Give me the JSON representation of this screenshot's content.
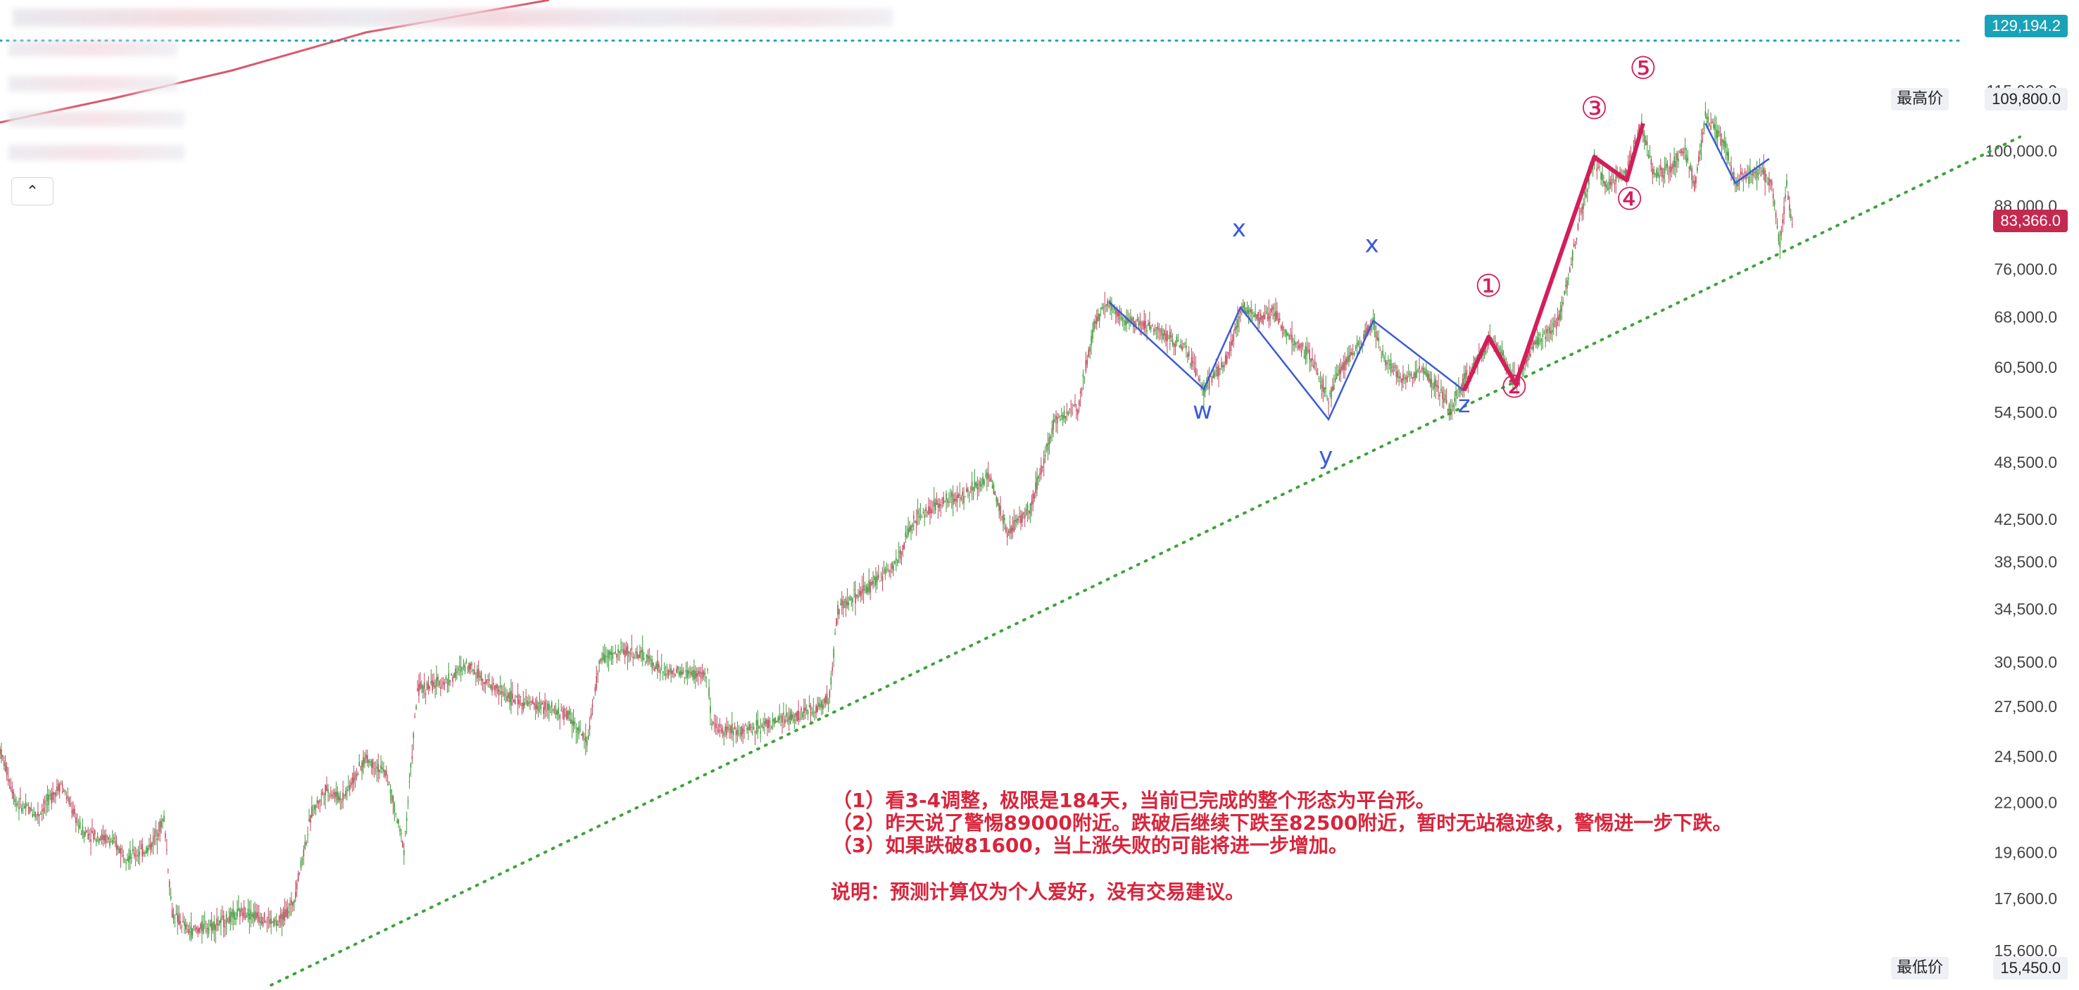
{
  "header": {
    "toggle_icon": "chevron-up-icon"
  },
  "price_tags": {
    "top_level": "129,194.2",
    "high_label": "最高价",
    "high_value": "109,800.0",
    "current": "83,366.0",
    "low_label": "最低价",
    "low_value": "15,450.0"
  },
  "notes": {
    "line1": "（1）看3-4调整，极限是184天，当前已完成的整个形态为平台形。",
    "line2": "（2）昨天说了警惕89000附近。跌破后继续下跌至82500附近，暂时无站稳迹象，警惕进一步下跌。",
    "line3": "（3）如果跌破81600，当上涨失败的可能将进一步增加。",
    "disclaimer": "说明：预测计算仅为个人爱好，没有交易建议。"
  },
  "colors": {
    "up": "#3f9a3a",
    "down": "#c2475e",
    "wave_blue": "#3b5bd6",
    "wave_red": "#d21f5a",
    "trend_green": "#3da33a",
    "top_line": "#1aa3b8",
    "note_red": "#d8253c"
  },
  "chart_data": {
    "type": "candlestick",
    "y_scale": "log",
    "y_ticks": [
      "115,000.0",
      "100,000.0",
      "88,000.0",
      "76,000.0",
      "68,000.0",
      "60,500.0",
      "54,500.0",
      "48,500.0",
      "42,500.0",
      "38,500.0",
      "34,500.0",
      "30,500.0",
      "27,500.0",
      "24,500.0",
      "22,000.0",
      "19,600.0",
      "17,600.0",
      "15,600.0"
    ],
    "y_tick_values": [
      115000,
      100000,
      88000,
      76000,
      68000,
      60500,
      54500,
      48500,
      42500,
      38500,
      34500,
      30500,
      27500,
      24500,
      22000,
      19600,
      17600,
      15600
    ],
    "ylim": [
      14400,
      133000
    ],
    "x_index_range": [
      0,
      1300
    ],
    "price_path": [
      [
        0,
        24900
      ],
      [
        12,
        22000
      ],
      [
        28,
        21400
      ],
      [
        45,
        23000
      ],
      [
        60,
        20600
      ],
      [
        80,
        20200
      ],
      [
        95,
        19400
      ],
      [
        110,
        19800
      ],
      [
        121,
        21200
      ],
      [
        127,
        17000
      ],
      [
        140,
        16300
      ],
      [
        165,
        16700
      ],
      [
        180,
        17100
      ],
      [
        205,
        16600
      ],
      [
        216,
        17400
      ],
      [
        230,
        21500
      ],
      [
        240,
        22700
      ],
      [
        252,
        22200
      ],
      [
        270,
        24400
      ],
      [
        285,
        23500
      ],
      [
        298,
        19800
      ],
      [
        308,
        28600
      ],
      [
        330,
        29200
      ],
      [
        345,
        30400
      ],
      [
        362,
        28900
      ],
      [
        380,
        27900
      ],
      [
        400,
        27500
      ],
      [
        420,
        26900
      ],
      [
        433,
        25300
      ],
      [
        443,
        30800
      ],
      [
        462,
        31300
      ],
      [
        475,
        30900
      ],
      [
        490,
        29800
      ],
      [
        522,
        29600
      ],
      [
        525,
        26200
      ],
      [
        545,
        26000
      ],
      [
        575,
        26600
      ],
      [
        603,
        27400
      ],
      [
        612,
        28200
      ],
      [
        618,
        34500
      ],
      [
        640,
        36200
      ],
      [
        660,
        38300
      ],
      [
        675,
        42500
      ],
      [
        692,
        44100
      ],
      [
        710,
        44800
      ],
      [
        730,
        47000
      ],
      [
        743,
        41200
      ],
      [
        760,
        43600
      ],
      [
        778,
        53500
      ],
      [
        795,
        55000
      ],
      [
        808,
        67500
      ],
      [
        818,
        70400
      ],
      [
        830,
        67600
      ],
      [
        850,
        66500
      ],
      [
        875,
        63000
      ],
      [
        888,
        57500
      ],
      [
        905,
        61500
      ],
      [
        917,
        69800
      ],
      [
        930,
        67800
      ],
      [
        940,
        68800
      ],
      [
        950,
        64900
      ],
      [
        967,
        62000
      ],
      [
        980,
        56300
      ],
      [
        990,
        60500
      ],
      [
        1005,
        64600
      ],
      [
        1013,
        67400
      ],
      [
        1020,
        61900
      ],
      [
        1035,
        58800
      ],
      [
        1050,
        60000
      ],
      [
        1065,
        56400
      ],
      [
        1070,
        54700
      ],
      [
        1080,
        58900
      ],
      [
        1100,
        64600
      ],
      [
        1110,
        61700
      ],
      [
        1118,
        58200
      ],
      [
        1130,
        63400
      ],
      [
        1150,
        67400
      ],
      [
        1158,
        76000
      ],
      [
        1166,
        86400
      ],
      [
        1176,
        98000
      ],
      [
        1185,
        92200
      ],
      [
        1200,
        95200
      ],
      [
        1210,
        106800
      ],
      [
        1220,
        95000
      ],
      [
        1232,
        95800
      ],
      [
        1242,
        100800
      ],
      [
        1250,
        92400
      ],
      [
        1258,
        108300
      ],
      [
        1272,
        102200
      ],
      [
        1280,
        93000
      ],
      [
        1290,
        94300
      ],
      [
        1300,
        95600
      ],
      [
        1307,
        92000
      ],
      [
        1313,
        79800
      ],
      [
        1318,
        93000
      ],
      [
        1322,
        83400
      ]
    ],
    "wave_blue": [
      [
        818,
        70400
      ],
      [
        888,
        57500
      ],
      [
        915,
        69500
      ],
      [
        980,
        53600
      ],
      [
        1013,
        67400
      ],
      [
        1080,
        57300
      ]
    ],
    "wave_red": [
      [
        1080,
        57300
      ],
      [
        1098,
        64900
      ],
      [
        1118,
        58200
      ],
      [
        1176,
        98600
      ],
      [
        1200,
        93400
      ],
      [
        1212,
        106600
      ]
    ],
    "wave_blue_tail": [
      [
        1258,
        106600
      ],
      [
        1280,
        92800
      ],
      [
        1305,
        98200
      ]
    ],
    "wave_labels": [
      {
        "text": "w",
        "x": 887,
        "price": 53700,
        "color": "blue"
      },
      {
        "text": "x",
        "x": 914,
        "price": 82000,
        "color": "blue"
      },
      {
        "text": "y",
        "x": 978,
        "price": 48300,
        "color": "blue"
      },
      {
        "text": "x",
        "x": 1012,
        "price": 79000,
        "color": "blue"
      },
      {
        "text": "z",
        "x": 1080,
        "price": 54500,
        "color": "blue"
      },
      {
        "text": "①",
        "x": 1098,
        "price": 71300,
        "color": "red"
      },
      {
        "text": "②",
        "x": 1117,
        "price": 56400,
        "color": "red"
      },
      {
        "text": "③",
        "x": 1176,
        "price": 107700,
        "color": "red"
      },
      {
        "text": "④",
        "x": 1202,
        "price": 87200,
        "color": "red"
      },
      {
        "text": "⑤",
        "x": 1212,
        "price": 118200,
        "color": "red"
      }
    ],
    "trend_line": [
      [
        200,
        14400
      ],
      [
        1490,
        103300
      ]
    ],
    "top_line_price": 129194.2
  }
}
